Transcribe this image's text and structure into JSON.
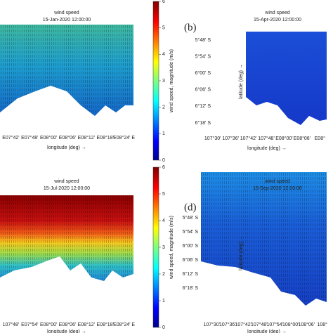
{
  "panels": [
    {
      "label": null,
      "title": "wind speed",
      "subtitle": "15-Jan-2020 12:00:00",
      "xticks": [
        "E07°42'",
        "E07°48'",
        "E08°00'",
        "E08°06'",
        "E08°12'",
        "E08°18'",
        "E08°24' E"
      ],
      "xlabel": "longitude (deg) →",
      "colorbar": {
        "label": "wind speed, magnitude (m/s)",
        "lim": [
          0,
          6
        ],
        "ticks": [
          0,
          1,
          2,
          3,
          4,
          5,
          6
        ]
      }
    },
    {
      "label": "(b)",
      "title": "wind speed",
      "subtitle": "15-Apr-2020 12:00:00",
      "yticks": [
        "5°48' S",
        "5°54' S",
        "6°00' S",
        "6°06' S",
        "6°12' S",
        "6°18' S"
      ],
      "ylabel": "latitude (deg) →",
      "xticks": [
        "107°30'",
        "107°36'",
        "107°42'",
        "107°48'",
        "E08°00'",
        "E08°06'",
        "E08°"
      ],
      "xlabel": "longitude (deg) →"
    },
    {
      "label": null,
      "title": "wind speed",
      "subtitle": "15-Jul-2020 12:00:00",
      "xticks": [
        "107°48'",
        "E07°54'",
        "E08°00'",
        "E08°06'",
        "E08°12'",
        "E08°18'",
        "E08°24' E"
      ],
      "xlabel": "longitude (deg) →",
      "colorbar": {
        "label": "wind speed, magnitude (m/s)",
        "lim": [
          0,
          6
        ],
        "ticks": [
          0,
          1,
          2,
          3,
          4,
          5,
          6
        ]
      }
    },
    {
      "label": "(d)",
      "title": "wind speed",
      "subtitle": "15-Sep-2020 12:00:00",
      "yticks": [
        "5°48' S",
        "5°54' S",
        "6°00' S",
        "6°06' S",
        "6°12' S",
        "6°18' S"
      ],
      "ylabel": "latitude (deg) →",
      "xticks": [
        "107°30'",
        "107°36'",
        "107°42'",
        "107°48'",
        "107°54'",
        "108°00'",
        "108°06'",
        "108°"
      ],
      "xlabel": "longitude (deg) →"
    }
  ]
}
